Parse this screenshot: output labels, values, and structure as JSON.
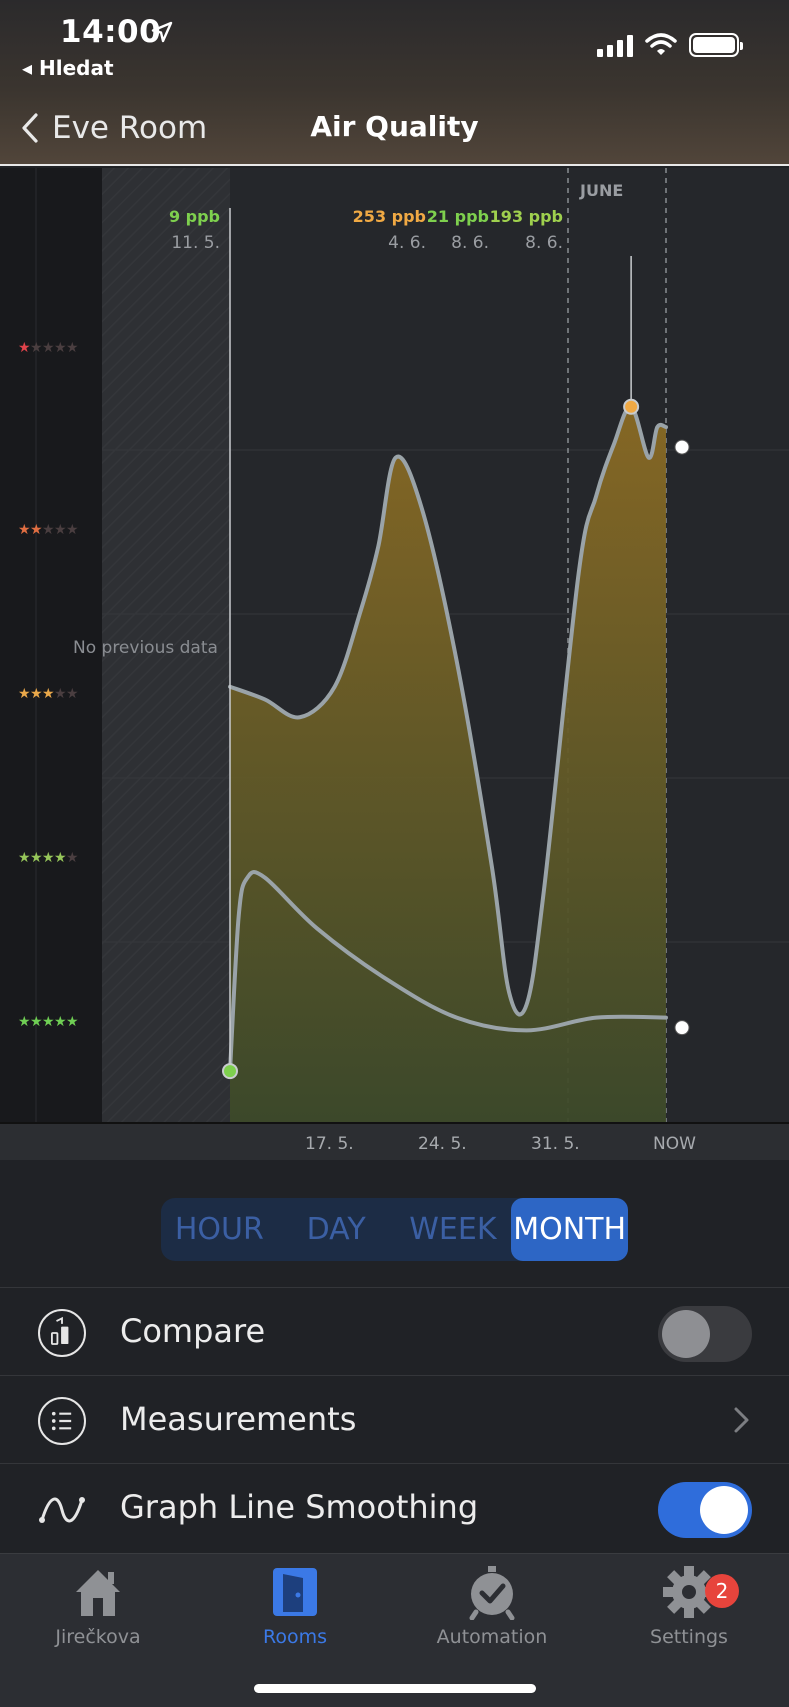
{
  "status_bar": {
    "time": "14:00",
    "back_app": "Hledat"
  },
  "nav": {
    "back_label": "Eve Room",
    "title": "Air Quality"
  },
  "chart_data": {
    "type": "area",
    "month_label": "JUNE",
    "no_data_label": "No previous data",
    "x_ticks": [
      "17. 5.",
      "24. 5.",
      "31. 5.",
      "NOW"
    ],
    "markers": [
      {
        "value": "9 ppb",
        "date": "11. 5.",
        "color": "#7ed04e"
      },
      {
        "value": "253 ppb",
        "date": "4. 6.",
        "color": "#f0a944"
      },
      {
        "value": "21 ppb",
        "date": "8. 6.",
        "color": "#7ed04e"
      },
      {
        "value": "193 ppb",
        "date": "8. 6.",
        "color": "#9fd04e"
      }
    ],
    "ratings": [
      1,
      2,
      3,
      4,
      5
    ],
    "series": [
      {
        "values": [
          [
            11,
            160
          ],
          [
            13,
            155
          ],
          [
            15,
            148
          ],
          [
            17,
            160
          ],
          [
            18.5,
            190
          ],
          [
            19.5,
            215
          ],
          [
            20.5,
            250
          ],
          [
            22,
            230
          ],
          [
            24,
            170
          ],
          [
            26,
            90
          ],
          [
            27,
            40
          ],
          [
            28,
            35
          ],
          [
            29,
            80
          ],
          [
            31,
            205
          ],
          [
            32,
            235
          ],
          [
            33,
            255
          ],
          [
            34,
            270
          ],
          [
            35,
            250
          ],
          [
            35.5,
            262
          ],
          [
            36,
            262
          ]
        ]
      },
      {
        "values": [
          [
            11,
            9
          ],
          [
            11.5,
            70
          ],
          [
            12,
            85
          ],
          [
            13,
            85
          ],
          [
            16,
            65
          ],
          [
            20,
            45
          ],
          [
            24,
            30
          ],
          [
            28,
            25
          ],
          [
            32,
            30
          ],
          [
            36,
            30
          ]
        ]
      }
    ]
  },
  "segmented": {
    "items": [
      "HOUR",
      "DAY",
      "WEEK",
      "MONTH"
    ],
    "selected": "MONTH"
  },
  "settings": {
    "compare_label": "Compare",
    "compare_on": false,
    "measurements_label": "Measurements",
    "smoothing_label": "Graph Line Smoothing",
    "smoothing_on": true
  },
  "tabbar": {
    "items": [
      {
        "label": "Jirečkova",
        "icon": "home-icon"
      },
      {
        "label": "Rooms",
        "icon": "door-icon"
      },
      {
        "label": "Automation",
        "icon": "alarm-clock-icon"
      },
      {
        "label": "Settings",
        "icon": "gear-icon"
      }
    ],
    "selected": "Rooms",
    "settings_badge": "2"
  },
  "colors": {
    "accent": "#2d66c5",
    "active_tab": "#3b79e6",
    "badge": "#e7443c"
  }
}
